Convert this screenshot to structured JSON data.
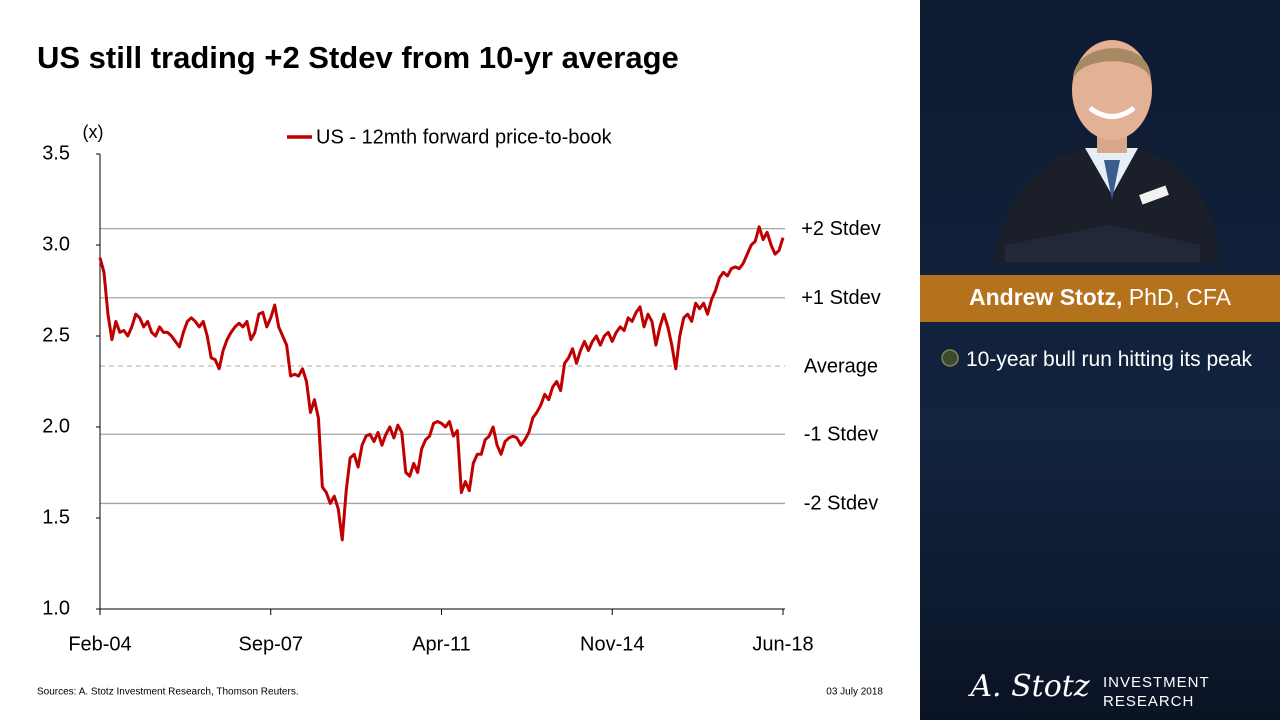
{
  "chart_data": {
    "type": "line",
    "title": "US still trading +2 Stdev from 10-yr average",
    "y_label": "(x)",
    "categories": [
      "Feb-04",
      null,
      null,
      null,
      null,
      null,
      null,
      null,
      null,
      null,
      null,
      null,
      null,
      null,
      null,
      null,
      null,
      null,
      null,
      null,
      null,
      null,
      null,
      null,
      null,
      null,
      null,
      null,
      null,
      null,
      null,
      null,
      null,
      null,
      null,
      null,
      null,
      null,
      null,
      null,
      null,
      null,
      null,
      "Sep-07",
      null,
      null,
      null,
      null,
      null,
      null,
      null,
      null,
      null,
      null,
      null,
      null,
      null,
      null,
      null,
      null,
      null,
      null,
      null,
      null,
      null,
      null,
      null,
      null,
      null,
      null,
      null,
      null,
      null,
      null,
      null,
      null,
      null,
      null,
      null,
      null,
      null,
      null,
      null,
      null,
      null,
      null,
      "Apr-11",
      null,
      null,
      null,
      null,
      null,
      null,
      null,
      null,
      null,
      null,
      null,
      null,
      null,
      null,
      null,
      null,
      null,
      null,
      null,
      null,
      null,
      null,
      null,
      null,
      null,
      null,
      null,
      null,
      null,
      null,
      null,
      null,
      null,
      null,
      null,
      null,
      null,
      null,
      null,
      null,
      null,
      null,
      "Nov-14",
      null,
      null,
      null,
      null,
      null,
      null,
      null,
      null,
      null,
      null,
      null,
      null,
      null,
      null,
      null,
      null,
      null,
      null,
      null,
      null,
      null,
      null,
      null,
      null,
      null,
      null,
      null,
      null,
      null,
      null,
      null,
      null,
      null,
      null,
      null,
      null,
      null,
      null,
      null,
      null,
      null,
      null,
      "Jun-18"
    ],
    "series": [
      {
        "name": "US - 12mth forward price-to-book",
        "color": "#c00000",
        "values": [
          2.93,
          2.85,
          2.62,
          2.48,
          2.58,
          2.52,
          2.53,
          2.5,
          2.55,
          2.62,
          2.6,
          2.55,
          2.58,
          2.52,
          2.5,
          2.55,
          2.52,
          2.52,
          2.5,
          2.47,
          2.44,
          2.52,
          2.58,
          2.6,
          2.58,
          2.55,
          2.58,
          2.5,
          2.38,
          2.37,
          2.32,
          2.42,
          2.48,
          2.52,
          2.55,
          2.57,
          2.55,
          2.58,
          2.48,
          2.52,
          2.62,
          2.63,
          2.55,
          2.6,
          2.67,
          2.55,
          2.5,
          2.45,
          2.28,
          2.29,
          2.28,
          2.32,
          2.25,
          2.08,
          2.15,
          2.05,
          1.67,
          1.64,
          1.58,
          1.62,
          1.55,
          1.38,
          1.65,
          1.83,
          1.85,
          1.78,
          1.9,
          1.95,
          1.96,
          1.92,
          1.97,
          1.9,
          1.96,
          2.0,
          1.94,
          2.01,
          1.97,
          1.75,
          1.73,
          1.8,
          1.75,
          1.88,
          1.93,
          1.95,
          2.02,
          2.03,
          2.02,
          2.0,
          2.03,
          1.95,
          1.98,
          1.64,
          1.7,
          1.65,
          1.8,
          1.85,
          1.85,
          1.93,
          1.95,
          2.0,
          1.9,
          1.85,
          1.92,
          1.94,
          1.95,
          1.94,
          1.9,
          1.93,
          1.97,
          2.05,
          2.08,
          2.12,
          2.18,
          2.15,
          2.22,
          2.25,
          2.2,
          2.35,
          2.38,
          2.43,
          2.35,
          2.42,
          2.47,
          2.42,
          2.47,
          2.5,
          2.45,
          2.5,
          2.52,
          2.47,
          2.52,
          2.55,
          2.53,
          2.6,
          2.58,
          2.63,
          2.66,
          2.55,
          2.62,
          2.58,
          2.45,
          2.55,
          2.62,
          2.55,
          2.45,
          2.32,
          2.5,
          2.6,
          2.62,
          2.58,
          2.68,
          2.65,
          2.68,
          2.62,
          2.7,
          2.75,
          2.82,
          2.85,
          2.83,
          2.87,
          2.88,
          2.87,
          2.9,
          2.95,
          3.0,
          3.02,
          3.1,
          3.03,
          3.07,
          3.0,
          2.95,
          2.97,
          3.04
        ]
      }
    ],
    "ylim": [
      1.0,
      3.5
    ],
    "yticks": [
      {
        "value": 1,
        "label": "1.0"
      },
      1.5,
      {
        "value": 2,
        "label": "2.0"
      },
      2.5,
      {
        "value": 3,
        "label": "3.0"
      },
      3.5
    ],
    "reference_lines": [
      {
        "label": "+2 Stdev",
        "value": 3.09,
        "color": "#a6a6a6",
        "dashed": false
      },
      {
        "label": "+1 Stdev",
        "value": 2.71,
        "color": "#a6a6a6",
        "dashed": false
      },
      {
        "label": "Average",
        "value": 2.335,
        "color": "#bfbfbf",
        "dashed": true
      },
      {
        "label": "-1 Stdev",
        "value": 1.96,
        "color": "#a6a6a6",
        "dashed": false
      },
      {
        "label": "-2 Stdev",
        "value": 1.58,
        "color": "#a6a6a6",
        "dashed": false
      }
    ],
    "legend": "top"
  },
  "sidebar": {
    "name": "Andrew Stotz,",
    "credentials": "PhD, CFA",
    "bullet": "10-year bull run hitting its peak",
    "logo_script": "A. Stotz",
    "logo_line1": "INVESTMENT",
    "logo_line2": "RESEARCH"
  },
  "footer": {
    "sources": "Sources: A. Stotz Investment Research, Thomson Reuters.",
    "date": "03 July 2018"
  }
}
